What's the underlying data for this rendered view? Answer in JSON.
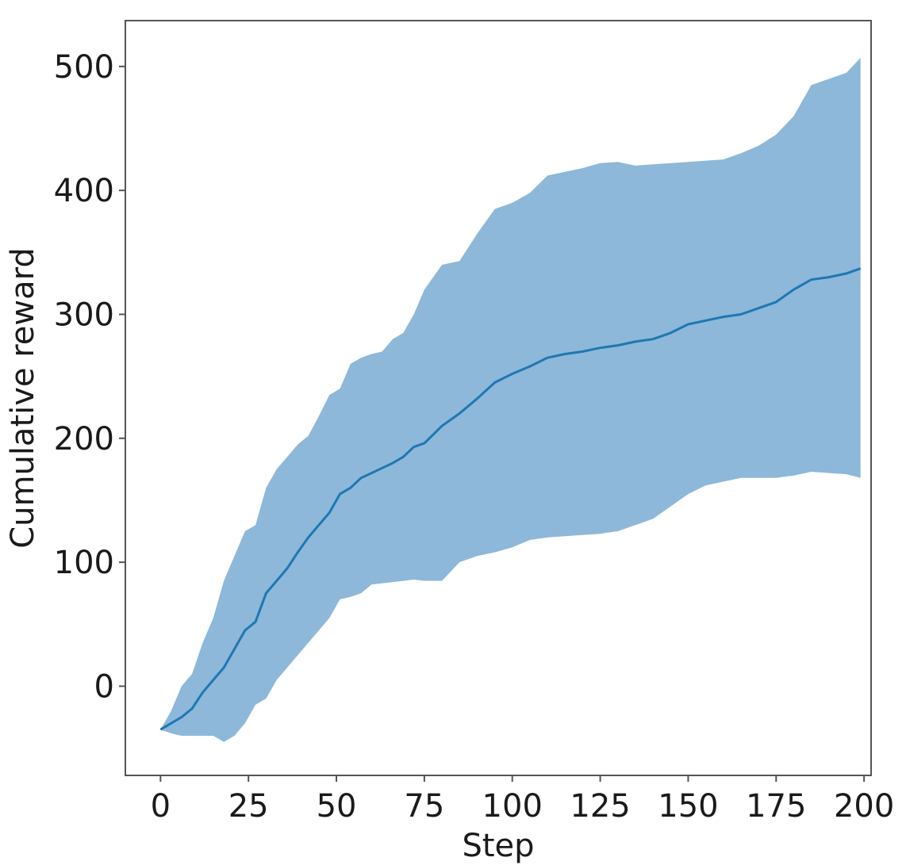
{
  "chart_data": {
    "type": "line",
    "title": "",
    "xlabel": "Step",
    "ylabel": "Cumulative reward",
    "xlim": [
      -10,
      202
    ],
    "ylim": [
      -72,
      537
    ],
    "xticks": [
      0,
      25,
      50,
      75,
      100,
      125,
      150,
      175,
      200
    ],
    "yticks": [
      0,
      100,
      200,
      300,
      400,
      500
    ],
    "grid": false,
    "legend": "none",
    "colors": {
      "line": "#1f77b4",
      "band": "#8db8d9",
      "axes": "#555555"
    },
    "series": [
      {
        "x": [
          0,
          3,
          6,
          9,
          12,
          15,
          18,
          21,
          24,
          27,
          30,
          33,
          36,
          39,
          42,
          45,
          48,
          51,
          54,
          57,
          60,
          63,
          66,
          69,
          72,
          75,
          80,
          85,
          90,
          95,
          100,
          105,
          110,
          115,
          120,
          125,
          130,
          135,
          140,
          145,
          150,
          155,
          160,
          165,
          170,
          175,
          180,
          185,
          190,
          195,
          199
        ],
        "mean": [
          -35,
          -30,
          -25,
          -18,
          -5,
          5,
          15,
          30,
          45,
          52,
          75,
          85,
          95,
          108,
          120,
          130,
          140,
          155,
          160,
          168,
          172,
          176,
          180,
          185,
          193,
          196,
          210,
          220,
          232,
          245,
          252,
          258,
          265,
          268,
          270,
          273,
          275,
          278,
          280,
          285,
          292,
          295,
          298,
          300,
          305,
          310,
          320,
          328,
          330,
          333,
          337
        ],
        "upper": [
          -35,
          -20,
          0,
          10,
          35,
          55,
          85,
          105,
          125,
          130,
          160,
          175,
          185,
          195,
          202,
          218,
          235,
          240,
          260,
          265,
          268,
          270,
          280,
          285,
          300,
          320,
          340,
          343,
          365,
          385,
          390,
          398,
          412,
          415,
          418,
          422,
          423,
          420,
          421,
          422,
          423,
          424,
          425,
          430,
          436,
          445,
          460,
          485,
          490,
          495,
          507
        ],
        "lower": [
          -35,
          -38,
          -40,
          -40,
          -40,
          -40,
          -45,
          -40,
          -30,
          -15,
          -10,
          5,
          15,
          25,
          35,
          45,
          55,
          70,
          72,
          75,
          82,
          83,
          84,
          85,
          86,
          85,
          85,
          100,
          105,
          108,
          112,
          118,
          120,
          121,
          122,
          123,
          125,
          130,
          135,
          145,
          155,
          162,
          165,
          168,
          168,
          168,
          170,
          173,
          172,
          171,
          168
        ]
      }
    ]
  }
}
